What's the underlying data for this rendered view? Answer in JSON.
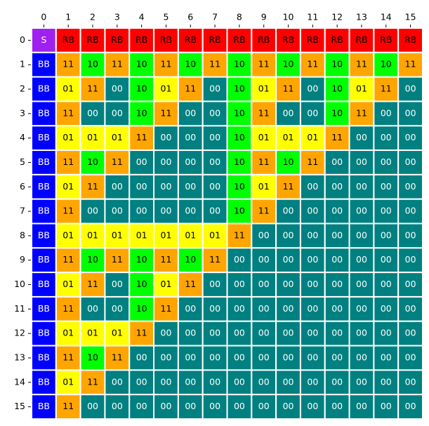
{
  "chart_data": {
    "type": "heatmap",
    "x": [
      0,
      1,
      2,
      3,
      4,
      5,
      6,
      7,
      8,
      9,
      10,
      11,
      12,
      13,
      14,
      15
    ],
    "y": [
      0,
      1,
      2,
      3,
      4,
      5,
      6,
      7,
      8,
      9,
      10,
      11,
      12,
      13,
      14,
      15
    ],
    "cells": [
      [
        "S",
        "RB",
        "RB",
        "RB",
        "RB",
        "RB",
        "RB",
        "RB",
        "RB",
        "RB",
        "RB",
        "RB",
        "RB",
        "RB",
        "RB",
        "RB"
      ],
      [
        "BB",
        "11",
        "10",
        "11",
        "10",
        "11",
        "10",
        "11",
        "10",
        "11",
        "10",
        "11",
        "10",
        "11",
        "10",
        "11"
      ],
      [
        "BB",
        "01",
        "11",
        "00",
        "10",
        "01",
        "11",
        "00",
        "10",
        "01",
        "11",
        "00",
        "10",
        "01",
        "11",
        "00"
      ],
      [
        "BB",
        "11",
        "00",
        "00",
        "10",
        "11",
        "00",
        "00",
        "10",
        "11",
        "00",
        "00",
        "10",
        "11",
        "00",
        "00"
      ],
      [
        "BB",
        "01",
        "01",
        "01",
        "11",
        "00",
        "00",
        "00",
        "10",
        "01",
        "01",
        "01",
        "11",
        "00",
        "00",
        "00"
      ],
      [
        "BB",
        "11",
        "10",
        "11",
        "00",
        "00",
        "00",
        "00",
        "10",
        "11",
        "10",
        "11",
        "00",
        "00",
        "00",
        "00"
      ],
      [
        "BB",
        "01",
        "11",
        "00",
        "00",
        "00",
        "00",
        "00",
        "10",
        "01",
        "11",
        "00",
        "00",
        "00",
        "00",
        "00"
      ],
      [
        "BB",
        "11",
        "00",
        "00",
        "00",
        "00",
        "00",
        "00",
        "10",
        "11",
        "00",
        "00",
        "00",
        "00",
        "00",
        "00"
      ],
      [
        "BB",
        "01",
        "01",
        "01",
        "01",
        "01",
        "01",
        "01",
        "11",
        "00",
        "00",
        "00",
        "00",
        "00",
        "00",
        "00"
      ],
      [
        "BB",
        "11",
        "10",
        "11",
        "10",
        "11",
        "10",
        "11",
        "00",
        "00",
        "00",
        "00",
        "00",
        "00",
        "00",
        "00"
      ],
      [
        "BB",
        "01",
        "11",
        "00",
        "10",
        "01",
        "11",
        "00",
        "00",
        "00",
        "00",
        "00",
        "00",
        "00",
        "00",
        "00"
      ],
      [
        "BB",
        "11",
        "00",
        "00",
        "10",
        "11",
        "00",
        "00",
        "00",
        "00",
        "00",
        "00",
        "00",
        "00",
        "00",
        "00"
      ],
      [
        "BB",
        "01",
        "01",
        "01",
        "11",
        "00",
        "00",
        "00",
        "00",
        "00",
        "00",
        "00",
        "00",
        "00",
        "00",
        "00"
      ],
      [
        "BB",
        "11",
        "10",
        "11",
        "00",
        "00",
        "00",
        "00",
        "00",
        "00",
        "00",
        "00",
        "00",
        "00",
        "00",
        "00"
      ],
      [
        "BB",
        "01",
        "11",
        "00",
        "00",
        "00",
        "00",
        "00",
        "00",
        "00",
        "00",
        "00",
        "00",
        "00",
        "00",
        "00"
      ],
      [
        "BB",
        "11",
        "00",
        "00",
        "00",
        "00",
        "00",
        "00",
        "00",
        "00",
        "00",
        "00",
        "00",
        "00",
        "00",
        "00"
      ]
    ],
    "colors": {
      "S": "#a020f0",
      "RB": "#ff0000",
      "BB": "#0000ff",
      "11": "#ffa500",
      "10": "#00ff00",
      "01": "#ffff00",
      "00": "#008080"
    },
    "text_colors": {
      "S": "#ffffff",
      "RB": "#000000",
      "BB": "#ffffff",
      "11": "#000000",
      "10": "#000000",
      "01": "#000000",
      "00": "#ffffff"
    },
    "x_axis_position": "top"
  }
}
